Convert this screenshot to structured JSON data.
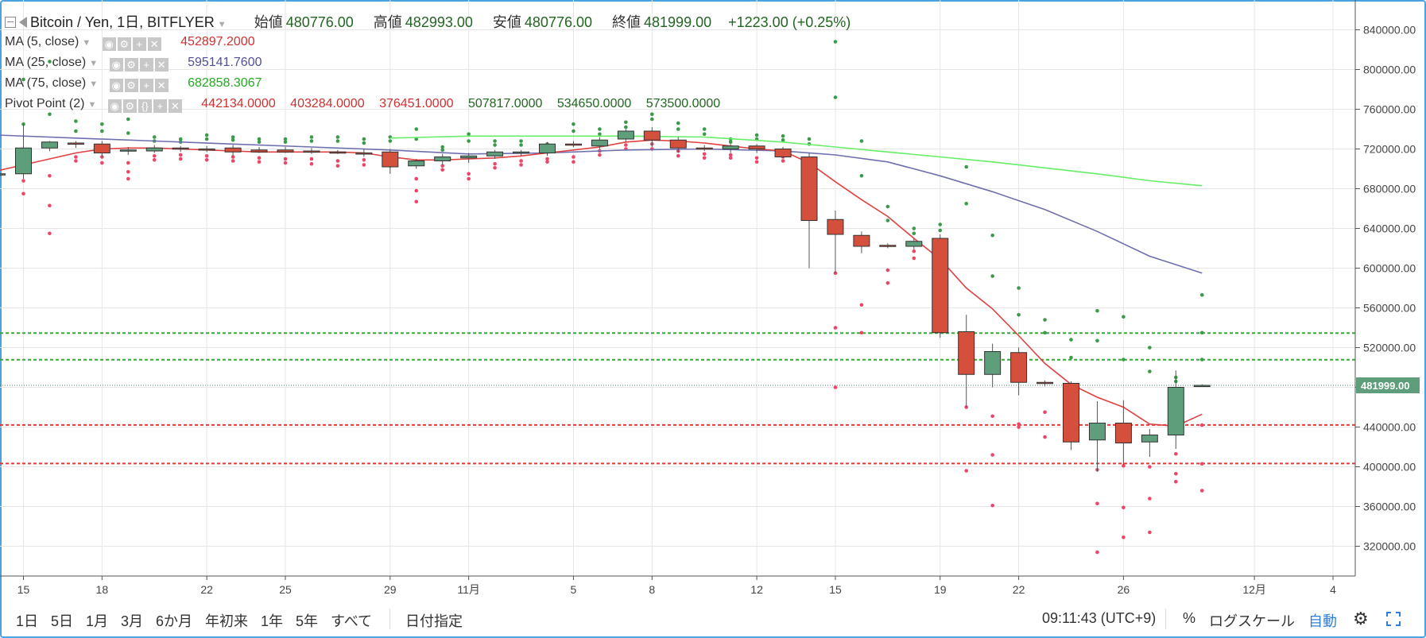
{
  "main_legend": {
    "title": "Bitcoin / Yen, 1日, BITFLYER",
    "open_label": "始値",
    "open_value": "480776.00",
    "high_label": "高値",
    "high_value": "482993.00",
    "low_label": "安値",
    "low_value": "480776.00",
    "close_label": "終値",
    "close_value": "481999.00",
    "change": "+1223.00 (+0.25%)"
  },
  "indicators": [
    {
      "label": "MA (5, close)",
      "value": "452897.2000",
      "color": "#d03030"
    },
    {
      "label": "MA (25, close)",
      "value": "595141.7600",
      "color": "#5050a0"
    },
    {
      "label": "MA (75, close)",
      "value": "682858.3067",
      "color": "#22aa22"
    },
    {
      "label": "Pivot Point (2)",
      "values": [
        "442134.0000",
        "403284.0000",
        "376451.0000",
        "507817.0000",
        "534650.0000",
        "573500.0000"
      ],
      "colors": [
        "#d03030",
        "#d03030",
        "#d03030",
        "#226622",
        "#226622",
        "#226622"
      ]
    }
  ],
  "bottom_bar": {
    "ranges": [
      "1日",
      "5日",
      "1月",
      "3月",
      "6か月",
      "年初来",
      "1年",
      "5年",
      "すべて"
    ],
    "goto_date": "日付指定",
    "time": "09:11:43 (UTC+9)",
    "percent": "%",
    "log_scale": "ログスケール",
    "auto": "自動"
  },
  "chart_data": {
    "type": "candlestick",
    "ylim": [
      290000,
      870000
    ],
    "y_ticks": [
      "840000.00",
      "800000.00",
      "760000.00",
      "720000.00",
      "680000.00",
      "640000.00",
      "600000.00",
      "560000.00",
      "520000.00",
      "480000.00",
      "440000.00",
      "400000.00",
      "360000.00",
      "320000.00"
    ],
    "y_tick_values": [
      840000,
      800000,
      760000,
      720000,
      680000,
      640000,
      600000,
      560000,
      520000,
      480000,
      440000,
      400000,
      360000,
      320000
    ],
    "x_ticks": [
      {
        "label": "15",
        "day": 0
      },
      {
        "label": "18",
        "day": 3
      },
      {
        "label": "22",
        "day": 7
      },
      {
        "label": "25",
        "day": 10
      },
      {
        "label": "29",
        "day": 14
      },
      {
        "label": "11月",
        "day": 17
      },
      {
        "label": "5",
        "day": 21
      },
      {
        "label": "8",
        "day": 24
      },
      {
        "label": "12",
        "day": 28
      },
      {
        "label": "15",
        "day": 31
      },
      {
        "label": "19",
        "day": 35
      },
      {
        "label": "22",
        "day": 38
      },
      {
        "label": "26",
        "day": 42
      },
      {
        "label": "12月",
        "day": 47
      },
      {
        "label": "4",
        "day": 50
      }
    ],
    "last_price": "481999.00",
    "last_price_value": 481999,
    "colors": {
      "up": "#5e9e7a",
      "down": "#d4503c",
      "grid": "#e6e6e6",
      "ma5": "#e04040",
      "ma25": "#6f6fb0",
      "ma75": "#66ee66",
      "pivot_support": "#ee3333",
      "pivot_resist": "#33aa33"
    },
    "pivot_levels": {
      "resistance": [
        534650,
        507817
      ],
      "support": [
        442134,
        403284
      ]
    },
    "candles": [
      {
        "day": -1,
        "o": 695000,
        "h": 697000,
        "l": 694000,
        "c": 695000
      },
      {
        "day": 0,
        "o": 695000,
        "h": 745000,
        "l": 690000,
        "c": 721000
      },
      {
        "day": 1,
        "o": 721000,
        "h": 728000,
        "l": 718000,
        "c": 727000
      },
      {
        "day": 2,
        "o": 726000,
        "h": 728000,
        "l": 721000,
        "c": 725000
      },
      {
        "day": 3,
        "o": 725000,
        "h": 728000,
        "l": 712000,
        "c": 716000
      },
      {
        "day": 4,
        "o": 718000,
        "h": 722000,
        "l": 714000,
        "c": 719000
      },
      {
        "day": 5,
        "o": 718000,
        "h": 724000,
        "l": 716000,
        "c": 721000
      },
      {
        "day": 6,
        "o": 721000,
        "h": 723000,
        "l": 717000,
        "c": 720000
      },
      {
        "day": 7,
        "o": 720000,
        "h": 723000,
        "l": 717000,
        "c": 719000
      },
      {
        "day": 8,
        "o": 721000,
        "h": 724000,
        "l": 713000,
        "c": 717000
      },
      {
        "day": 9,
        "o": 719000,
        "h": 722000,
        "l": 716000,
        "c": 717000
      },
      {
        "day": 10,
        "o": 719000,
        "h": 722000,
        "l": 716000,
        "c": 717000
      },
      {
        "day": 11,
        "o": 718000,
        "h": 721000,
        "l": 715000,
        "c": 717000
      },
      {
        "day": 12,
        "o": 717000,
        "h": 719000,
        "l": 715000,
        "c": 716000
      },
      {
        "day": 13,
        "o": 716000,
        "h": 720000,
        "l": 712000,
        "c": 715000
      },
      {
        "day": 14,
        "o": 717000,
        "h": 720000,
        "l": 695000,
        "c": 702000
      },
      {
        "day": 15,
        "o": 703000,
        "h": 710000,
        "l": 700000,
        "c": 708000
      },
      {
        "day": 16,
        "o": 708000,
        "h": 715000,
        "l": 704000,
        "c": 712000
      },
      {
        "day": 17,
        "o": 711000,
        "h": 716000,
        "l": 706000,
        "c": 713000
      },
      {
        "day": 18,
        "o": 713000,
        "h": 719000,
        "l": 710000,
        "c": 717000
      },
      {
        "day": 19,
        "o": 716000,
        "h": 719000,
        "l": 713000,
        "c": 717000
      },
      {
        "day": 20,
        "o": 716000,
        "h": 727000,
        "l": 713000,
        "c": 725000
      },
      {
        "day": 21,
        "o": 725000,
        "h": 728000,
        "l": 722000,
        "c": 724000
      },
      {
        "day": 22,
        "o": 723000,
        "h": 732000,
        "l": 720000,
        "c": 729000
      },
      {
        "day": 23,
        "o": 730000,
        "h": 740000,
        "l": 727000,
        "c": 738000
      },
      {
        "day": 24,
        "o": 738000,
        "h": 742000,
        "l": 722000,
        "c": 729000
      },
      {
        "day": 25,
        "o": 729000,
        "h": 732000,
        "l": 716000,
        "c": 721000
      },
      {
        "day": 26,
        "o": 721000,
        "h": 724000,
        "l": 718000,
        "c": 720000
      },
      {
        "day": 27,
        "o": 720000,
        "h": 725000,
        "l": 716000,
        "c": 723000
      },
      {
        "day": 28,
        "o": 723000,
        "h": 725000,
        "l": 716000,
        "c": 720000
      },
      {
        "day": 29,
        "o": 720000,
        "h": 722000,
        "l": 711000,
        "c": 712000
      },
      {
        "day": 30,
        "o": 712000,
        "h": 716000,
        "l": 600000,
        "c": 648000
      },
      {
        "day": 31,
        "o": 649000,
        "h": 658000,
        "l": 595000,
        "c": 634000
      },
      {
        "day": 32,
        "o": 633000,
        "h": 637000,
        "l": 615000,
        "c": 622000
      },
      {
        "day": 33,
        "o": 623000,
        "h": 625000,
        "l": 620000,
        "c": 622000
      },
      {
        "day": 34,
        "o": 622000,
        "h": 630000,
        "l": 619000,
        "c": 627000
      },
      {
        "day": 35,
        "o": 630000,
        "h": 634000,
        "l": 530000,
        "c": 535000
      },
      {
        "day": 36,
        "o": 536000,
        "h": 553000,
        "l": 460000,
        "c": 493000
      },
      {
        "day": 37,
        "o": 493000,
        "h": 524000,
        "l": 480000,
        "c": 516000
      },
      {
        "day": 38,
        "o": 515000,
        "h": 520000,
        "l": 472000,
        "c": 485000
      },
      {
        "day": 39,
        "o": 485000,
        "h": 487000,
        "l": 481000,
        "c": 484000
      },
      {
        "day": 40,
        "o": 484000,
        "h": 486000,
        "l": 417000,
        "c": 425000
      },
      {
        "day": 41,
        "o": 427000,
        "h": 466000,
        "l": 395000,
        "c": 444000
      },
      {
        "day": 42,
        "o": 444000,
        "h": 467000,
        "l": 402000,
        "c": 424000
      },
      {
        "day": 43,
        "o": 425000,
        "h": 438000,
        "l": 410000,
        "c": 432000
      },
      {
        "day": 44,
        "o": 432000,
        "h": 497000,
        "l": 418000,
        "c": 480000
      },
      {
        "day": 45,
        "o": 480776,
        "h": 482993,
        "l": 480776,
        "c": 481999
      }
    ],
    "ma5": [
      [
        -1,
        698000
      ],
      [
        0,
        704000
      ],
      [
        1,
        710000
      ],
      [
        2,
        716000
      ],
      [
        3,
        720000
      ],
      [
        4,
        721000
      ],
      [
        5,
        721000
      ],
      [
        6,
        720000
      ],
      [
        7,
        719000
      ],
      [
        8,
        718000
      ],
      [
        9,
        717000
      ],
      [
        10,
        717000
      ],
      [
        11,
        717000
      ],
      [
        12,
        717000
      ],
      [
        13,
        716000
      ],
      [
        14,
        712000
      ],
      [
        15,
        709000
      ],
      [
        16,
        709000
      ],
      [
        17,
        710000
      ],
      [
        18,
        711000
      ],
      [
        19,
        713000
      ],
      [
        20,
        716000
      ],
      [
        21,
        719000
      ],
      [
        22,
        722000
      ],
      [
        23,
        727000
      ],
      [
        24,
        729000
      ],
      [
        25,
        728000
      ],
      [
        26,
        726000
      ],
      [
        27,
        723000
      ],
      [
        28,
        720000
      ],
      [
        29,
        718000
      ],
      [
        30,
        706000
      ],
      [
        31,
        687000
      ],
      [
        32,
        669000
      ],
      [
        33,
        652000
      ],
      [
        34,
        630000
      ],
      [
        35,
        609000
      ],
      [
        36,
        580000
      ],
      [
        37,
        559000
      ],
      [
        38,
        532000
      ],
      [
        39,
        504000
      ],
      [
        40,
        483000
      ],
      [
        41,
        470000
      ],
      [
        42,
        460000
      ],
      [
        43,
        443000
      ],
      [
        44,
        441000
      ],
      [
        45,
        453000
      ]
    ],
    "ma25": [
      [
        -1,
        734000
      ],
      [
        2,
        731000
      ],
      [
        5,
        728000
      ],
      [
        8,
        725000
      ],
      [
        11,
        722000
      ],
      [
        14,
        719000
      ],
      [
        17,
        715000
      ],
      [
        20,
        716000
      ],
      [
        23,
        719000
      ],
      [
        26,
        720000
      ],
      [
        29,
        718000
      ],
      [
        31,
        714000
      ],
      [
        33,
        707000
      ],
      [
        35,
        693000
      ],
      [
        37,
        677000
      ],
      [
        39,
        659000
      ],
      [
        41,
        637000
      ],
      [
        43,
        612000
      ],
      [
        45,
        595000
      ]
    ],
    "ma75": [
      [
        14,
        731000
      ],
      [
        17,
        733000
      ],
      [
        20,
        733000
      ],
      [
        23,
        733000
      ],
      [
        26,
        732000
      ],
      [
        29,
        727000
      ],
      [
        31,
        722000
      ],
      [
        33,
        717000
      ],
      [
        35,
        712000
      ],
      [
        37,
        707000
      ],
      [
        39,
        701000
      ],
      [
        41,
        695000
      ],
      [
        43,
        688000
      ],
      [
        45,
        683000
      ]
    ],
    "pivot_dots": [
      {
        "day": 0,
        "r": [
          790000,
          745000
        ],
        "s": [
          688000,
          675000
        ]
      },
      {
        "day": 1,
        "r": [
          808000,
          755000
        ],
        "s": [
          693000,
          663000,
          635000
        ]
      },
      {
        "day": 2,
        "r": [
          748000,
          738000
        ],
        "s": [
          712000,
          708000
        ]
      },
      {
        "day": 3,
        "r": [
          745000,
          738000
        ],
        "s": [
          712000,
          706000
        ]
      },
      {
        "day": 4,
        "r": [
          750000,
          736000
        ],
        "s": [
          706000,
          697000,
          690000
        ]
      },
      {
        "day": 5,
        "r": [
          732000,
          728000
        ],
        "s": [
          713000,
          709000
        ]
      },
      {
        "day": 6,
        "r": [
          730000,
          727000
        ],
        "s": [
          714000,
          710000
        ]
      },
      {
        "day": 7,
        "r": [
          734000,
          730000
        ],
        "s": [
          713000,
          709000
        ]
      },
      {
        "day": 8,
        "r": [
          732000,
          729000
        ],
        "s": [
          712000,
          708000
        ]
      },
      {
        "day": 9,
        "r": [
          730000,
          727000
        ],
        "s": [
          711000,
          707000
        ]
      },
      {
        "day": 10,
        "r": [
          730000,
          727000
        ],
        "s": [
          710000,
          706000
        ]
      },
      {
        "day": 11,
        "r": [
          732000,
          728000
        ],
        "s": [
          710000,
          705000
        ]
      },
      {
        "day": 12,
        "r": [
          732000,
          728000
        ],
        "s": [
          708000,
          703000
        ]
      },
      {
        "day": 13,
        "r": [
          730000,
          726000
        ],
        "s": [
          709000,
          704000
        ]
      },
      {
        "day": 14,
        "r": [
          732000,
          728000
        ],
        "s": [
          708000,
          703000
        ]
      },
      {
        "day": 15,
        "r": [
          740000,
          730000
        ],
        "s": [
          690000,
          678000,
          667000
        ]
      },
      {
        "day": 16,
        "r": [
          722000,
          719000
        ],
        "s": [
          703000,
          699000
        ]
      },
      {
        "day": 17,
        "r": [
          735000,
          728000
        ],
        "s": [
          695000,
          690000
        ]
      },
      {
        "day": 18,
        "r": [
          728000,
          724000
        ],
        "s": [
          705000,
          701000
        ]
      },
      {
        "day": 19,
        "r": [
          728000,
          724000
        ],
        "s": [
          708000,
          704000
        ]
      },
      {
        "day": 20,
        "r": [
          725000,
          722000
        ],
        "s": [
          710000,
          707000
        ]
      },
      {
        "day": 21,
        "r": [
          745000,
          738000
        ],
        "s": [
          712000,
          707000
        ]
      },
      {
        "day": 22,
        "r": [
          740000,
          735000
        ],
        "s": [
          718000,
          714000
        ]
      },
      {
        "day": 23,
        "r": [
          747000,
          742000
        ],
        "s": [
          724000,
          720000
        ]
      },
      {
        "day": 24,
        "r": [
          755000,
          750000
        ],
        "s": [
          725000,
          720000
        ]
      },
      {
        "day": 25,
        "r": [
          746000,
          740000
        ],
        "s": [
          718000,
          713000
        ]
      },
      {
        "day": 26,
        "r": [
          740000,
          735000
        ],
        "s": [
          715000,
          711000
        ]
      },
      {
        "day": 27,
        "r": [
          730000,
          727000
        ],
        "s": [
          714000,
          711000
        ]
      },
      {
        "day": 28,
        "r": [
          734000,
          730000
        ],
        "s": [
          711000,
          707000
        ]
      },
      {
        "day": 29,
        "r": [
          733000,
          729000
        ],
        "s": [
          712000,
          708000
        ]
      },
      {
        "day": 30,
        "r": [
          730000,
          725000
        ],
        "s": [
          706000,
          702000
        ]
      },
      {
        "day": 31,
        "r": [
          828000,
          772000
        ],
        "s": [
          595000,
          540000,
          480000
        ]
      },
      {
        "day": 32,
        "r": [
          728000,
          693000
        ],
        "s": [
          563000,
          535000
        ]
      },
      {
        "day": 33,
        "r": [
          662000,
          648000
        ],
        "s": [
          598000,
          585000
        ]
      },
      {
        "day": 34,
        "r": [
          640000,
          635000
        ],
        "s": [
          617000,
          610000
        ]
      },
      {
        "day": 35,
        "r": [
          644000,
          638000
        ],
        "s": [
          615000,
          605000
        ]
      },
      {
        "day": 36,
        "r": [
          702000,
          665000
        ],
        "s": [
          460000,
          396000
        ]
      },
      {
        "day": 37,
        "r": [
          633000,
          592000
        ],
        "s": [
          451000,
          412000,
          361000
        ]
      },
      {
        "day": 38,
        "r": [
          580000,
          553000
        ],
        "s": [
          443000,
          440000
        ]
      },
      {
        "day": 39,
        "r": [
          548000,
          535000
        ],
        "s": [
          455000,
          430000
        ]
      },
      {
        "day": 40,
        "r": [
          528000,
          510000
        ],
        "s": [
          475000,
          464000
        ]
      },
      {
        "day": 41,
        "r": [
          557000,
          527000
        ],
        "s": [
          397000,
          363000,
          314000
        ]
      },
      {
        "day": 42,
        "r": [
          551000,
          508000
        ],
        "s": [
          401000,
          359000,
          329000
        ]
      },
      {
        "day": 43,
        "r": [
          520000,
          496000
        ],
        "s": [
          400000,
          368000,
          334000
        ]
      },
      {
        "day": 44,
        "r": [
          490000,
          486000
        ],
        "s": [
          413000,
          393000,
          385000
        ]
      },
      {
        "day": 45,
        "r": [
          573000,
          535000,
          508000
        ],
        "s": [
          442000,
          403000,
          376000
        ]
      }
    ]
  }
}
